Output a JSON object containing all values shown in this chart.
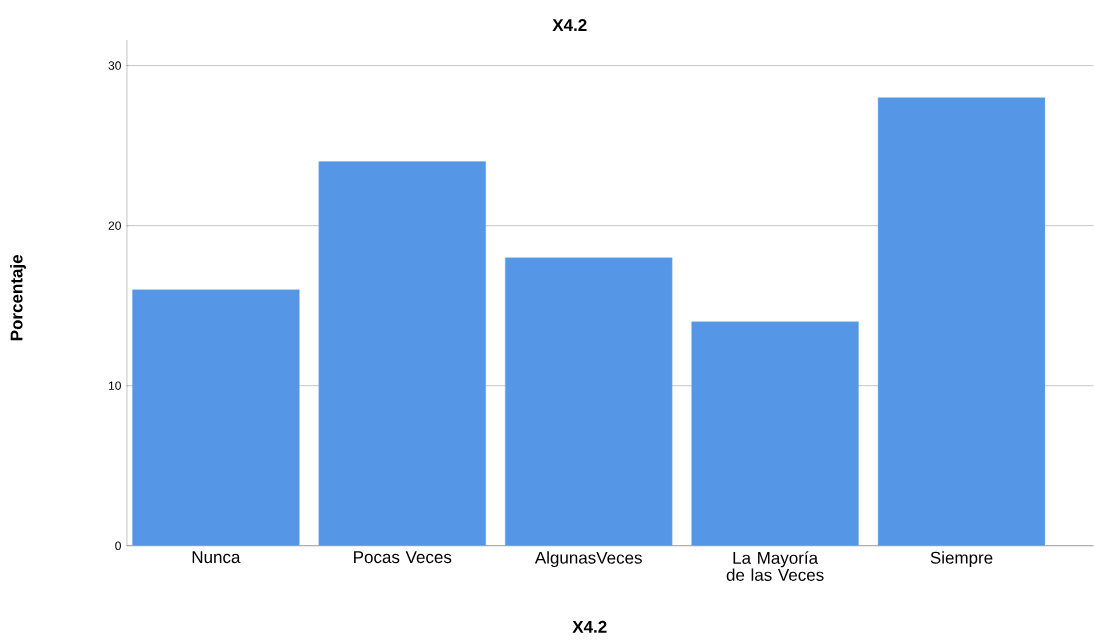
{
  "chart_data": {
    "type": "bar",
    "title": "X4.2",
    "xlabel": "X4.2",
    "ylabel": "Porcentaje",
    "categories": [
      "Nunca",
      "Pocas Veces",
      "AlgunasVeces",
      "La Mayoría de las Veces",
      "Siempre"
    ],
    "values": [
      16,
      24,
      18,
      14,
      28
    ],
    "color": "#5596e6",
    "ylim": [
      0,
      31.6
    ],
    "yticks": [
      0,
      10,
      20,
      30
    ],
    "grid": "y"
  }
}
